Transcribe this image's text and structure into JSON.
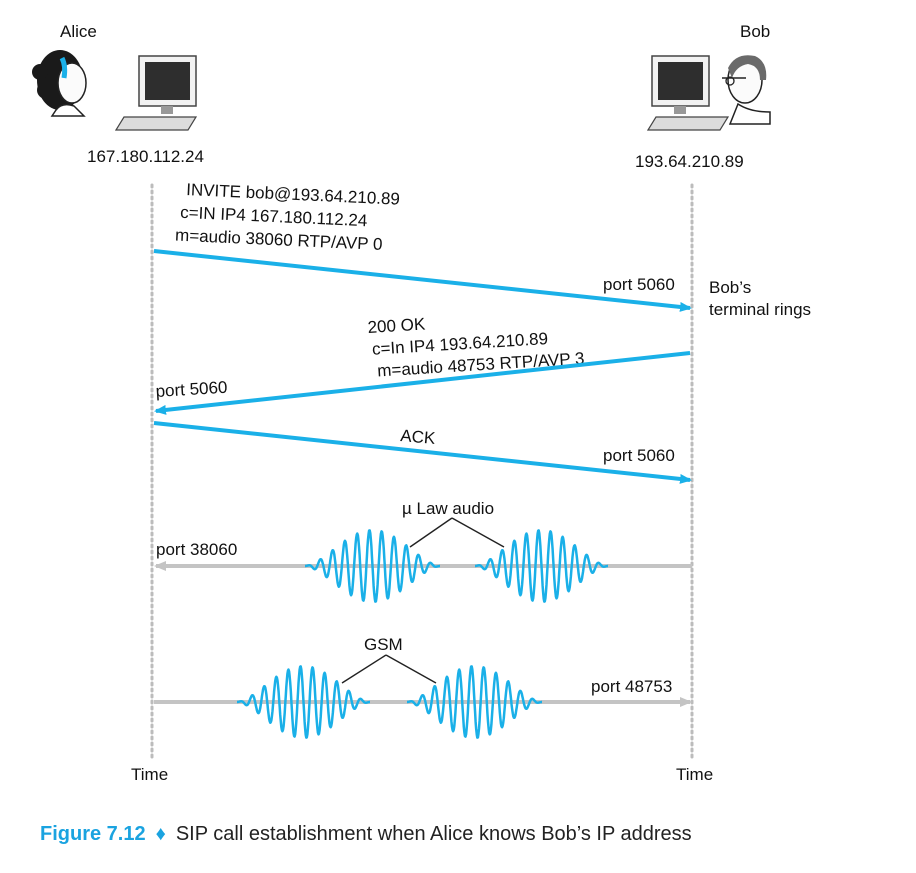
{
  "participants": {
    "alice": {
      "name": "Alice",
      "ip": "167.180.112.24",
      "time_label": "Time"
    },
    "bob": {
      "name": "Bob",
      "ip": "193.64.210.89",
      "time_label": "Time"
    }
  },
  "messages": {
    "invite": {
      "lines": [
        "INVITE bob@193.64.210.89",
        "c=IN IP4 167.180.112.24",
        "m=audio 38060 RTP/AVP 0"
      ],
      "port": "port 5060"
    },
    "ok": {
      "lines": [
        "200 OK",
        "c=In IP4 193.64.210.89",
        "m=audio 48753 RTP/AVP 3"
      ],
      "port": "port 5060"
    },
    "ack": {
      "label": "ACK",
      "port": "port 5060"
    },
    "bob_rings": [
      "Bob’s",
      "terminal rings"
    ]
  },
  "media": {
    "mu_law": {
      "label": "µ Law audio",
      "port": "port 38060"
    },
    "gsm": {
      "label": "GSM",
      "port": "port 48753"
    }
  },
  "caption": {
    "figure": "Figure 7.12",
    "separator": "♦",
    "text": "SIP call establishment when Alice knows Bob’s IP address"
  },
  "colors": {
    "arrow_blue": "#1ab0e8",
    "media_gray": "#c4c4c4",
    "timeline_gray": "#bcbcbc",
    "caption_blue": "#1aa3e0"
  }
}
